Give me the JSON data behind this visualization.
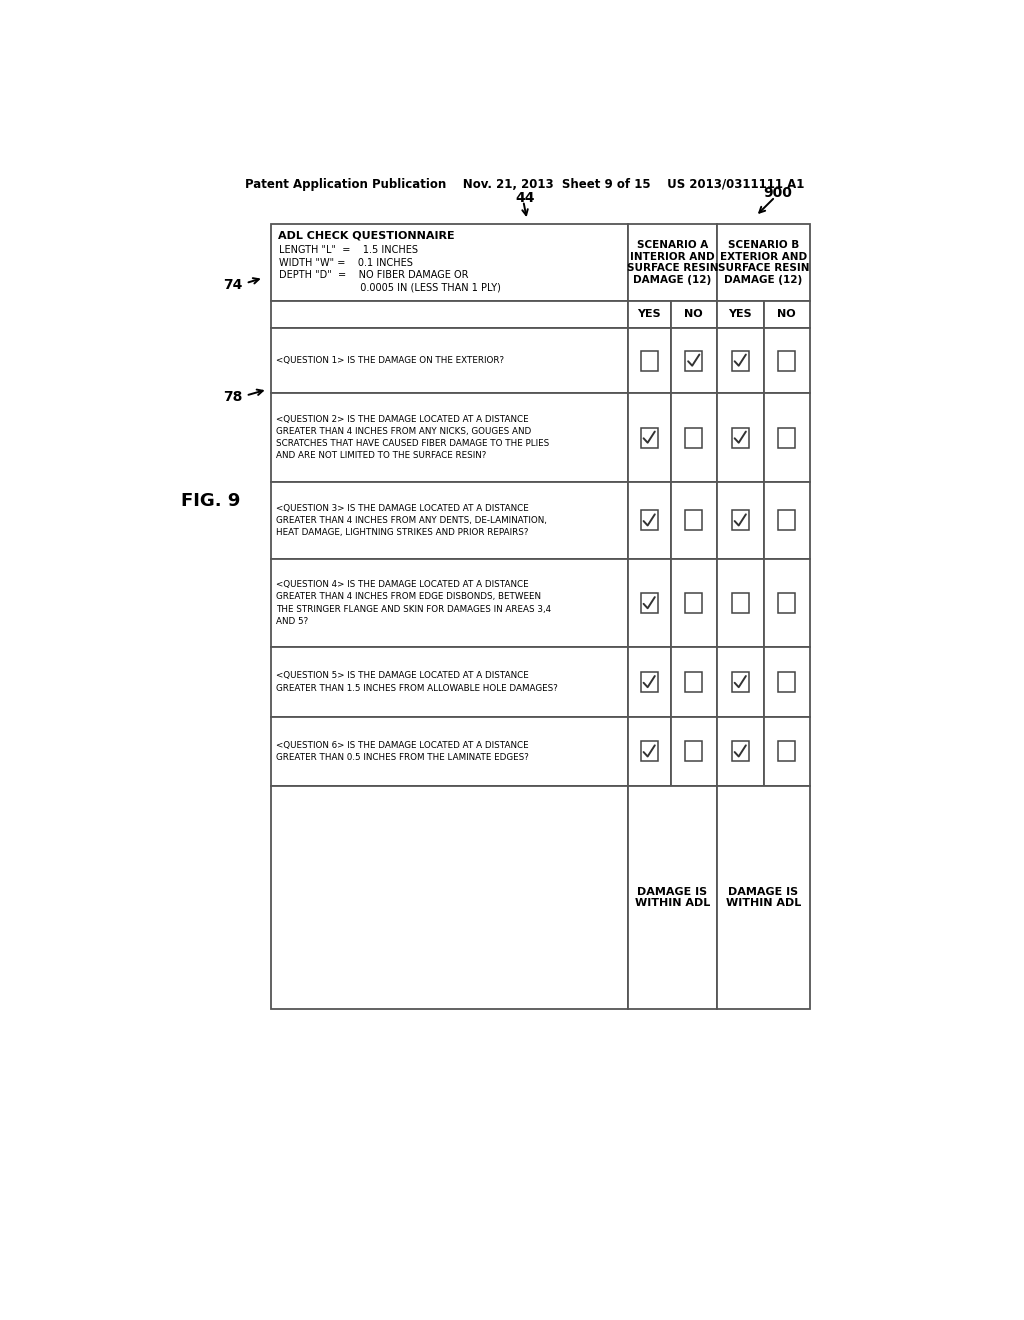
{
  "header_text": "Patent Application Publication    Nov. 21, 2013  Sheet 9 of 15    US 2013/0311111 A1",
  "fig_label": "FIG. 9",
  "ref_74": "74",
  "ref_44": "44",
  "ref_78": "78",
  "ref_900": "900",
  "adl_title": "ADL CHECK QUESTIONNAIRE",
  "adl_lines": [
    "LENGTH \"L\"  =    1.5 INCHES",
    "WIDTH \"W\" =    0.1 INCHES",
    "DEPTH \"D\"  =    NO FIBER DAMAGE OR",
    "                          0.0005 IN (LESS THAN 1 PLY)"
  ],
  "questions": [
    "<QUESTION 1> IS THE DAMAGE ON THE EXTERIOR?",
    "<QUESTION 2> IS THE DAMAGE LOCATED AT A DISTANCE\nGREATER THAN 4 INCHES FROM ANY NICKS, GOUGES AND\nSCRATCHES THAT HAVE CAUSED FIBER DAMAGE TO THE PLIES\nAND ARE NOT LIMITED TO THE SURFACE RESIN?",
    "<QUESTION 3> IS THE DAMAGE LOCATED AT A DISTANCE\nGREATER THAN 4 INCHES FROM ANY DENTS, DE-LAMINATION,\nHEAT DAMAGE, LIGHTNING STRIKES AND PRIOR REPAIRS?",
    "<QUESTION 4> IS THE DAMAGE LOCATED AT A DISTANCE\nGREATER THAN 4 INCHES FROM EDGE DISBONDS, BETWEEN\nTHE STRINGER FLANGE AND SKIN FOR DAMAGES IN AREAS 3,4\nAND 5?",
    "<QUESTION 5> IS THE DAMAGE LOCATED AT A DISTANCE\nGREATER THAN 1.5 INCHES FROM ALLOWABLE HOLE DAMAGES?",
    "<QUESTION 6> IS THE DAMAGE LOCATED AT A DISTANCE\nGREATER THAN 0.5 INCHES FROM THE LAMINATE EDGES?"
  ],
  "scenario_a_header": "SCENARIO A\nINTERIOR AND\nSURFACE RESIN\nDAMAGE (12)",
  "scenario_b_header": "SCENARIO B\nEXTERIOR AND\nSURFACE RESIN\nDAMAGE (12)",
  "scenario_a_result": "DAMAGE IS\nWITHIN ADL",
  "scenario_b_result": "DAMAGE IS\nWITHIN ADL",
  "scenario_a_yes_checks": [
    false,
    true,
    true,
    true,
    true,
    true
  ],
  "scenario_a_no_checks": [
    true,
    false,
    false,
    false,
    false,
    false
  ],
  "scenario_b_yes_checks": [
    true,
    true,
    true,
    false,
    true,
    true
  ],
  "scenario_b_no_checks": [
    false,
    false,
    false,
    false,
    false,
    false
  ],
  "background_color": "#ffffff",
  "border_color": "#555555",
  "text_color": "#000000"
}
